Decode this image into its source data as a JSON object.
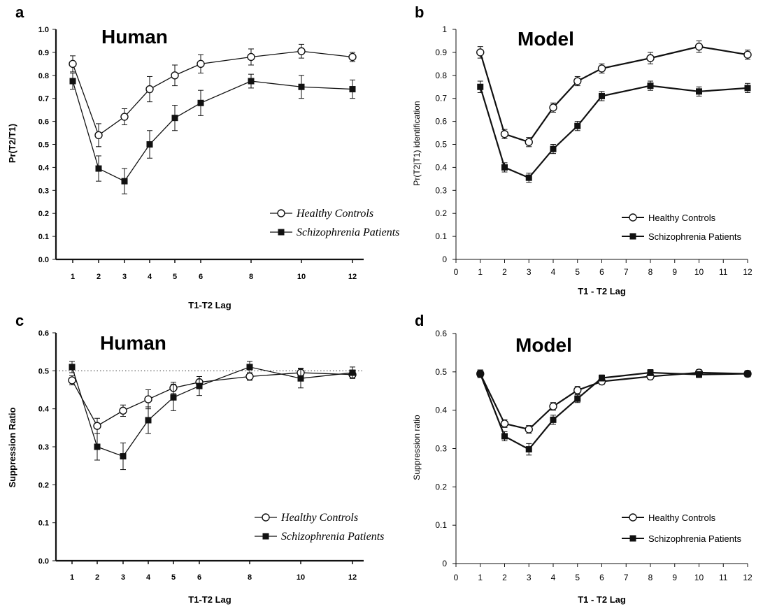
{
  "chart_data": [
    {
      "type": "line",
      "panel_label": "a",
      "title": "Human",
      "xlabel": "T1-T2 Lag",
      "ylabel": "Pr(T2/T1)",
      "x": [
        1,
        2,
        3,
        4,
        5,
        6,
        8,
        10,
        12
      ],
      "xtick_labels": [
        "1",
        "2",
        "3",
        "4",
        "5",
        "6",
        "8",
        "10",
        "12"
      ],
      "yticks": [
        "0.0",
        "0.1",
        "0.2",
        "0.3",
        "0.4",
        "0.5",
        "0.6",
        "0.7",
        "0.8",
        "0.9",
        "1.0"
      ],
      "ylim": [
        0,
        1.0
      ],
      "legend_location": "lower-right",
      "series": [
        {
          "name": "Healthy Controls",
          "marker": "open-circle",
          "values": [
            0.85,
            0.54,
            0.62,
            0.74,
            0.8,
            0.85,
            0.88,
            0.905,
            0.88
          ],
          "errors": [
            0.035,
            0.05,
            0.035,
            0.055,
            0.045,
            0.04,
            0.035,
            0.03,
            0.02
          ]
        },
        {
          "name": "Schizophrenia Patients",
          "marker": "filled-square",
          "values": [
            0.775,
            0.395,
            0.34,
            0.5,
            0.615,
            0.68,
            0.775,
            0.75,
            0.74
          ],
          "errors": [
            0.035,
            0.055,
            0.055,
            0.06,
            0.055,
            0.055,
            0.03,
            0.05,
            0.04
          ]
        }
      ]
    },
    {
      "type": "line",
      "panel_label": "b",
      "title": "Model",
      "xlabel": "T1 - T2 Lag",
      "ylabel": "Pr(T2|T1) identification",
      "x": [
        1,
        2,
        3,
        4,
        5,
        6,
        8,
        10,
        12
      ],
      "xtick_labels": [
        "0",
        "1",
        "2",
        "3",
        "4",
        "5",
        "6",
        "7",
        "8",
        "9",
        "10",
        "11",
        "12"
      ],
      "yticks": [
        "0",
        "0.1",
        "0.2",
        "0.3",
        "0.4",
        "0.5",
        "0.6",
        "0.7",
        "0.8",
        "0.9",
        "1"
      ],
      "xlim": [
        0,
        12
      ],
      "ylim": [
        0,
        1
      ],
      "legend_location": "lower-right",
      "series": [
        {
          "name": "Healthy Controls",
          "marker": "open-circle",
          "values": [
            0.9,
            0.545,
            0.51,
            0.66,
            0.775,
            0.83,
            0.875,
            0.925,
            0.89
          ],
          "errors": [
            0.025,
            0.02,
            0.02,
            0.02,
            0.02,
            0.02,
            0.025,
            0.025,
            0.02
          ]
        },
        {
          "name": "Schizophrenia Patients",
          "marker": "filled-square",
          "values": [
            0.75,
            0.4,
            0.355,
            0.48,
            0.58,
            0.71,
            0.755,
            0.73,
            0.745
          ],
          "errors": [
            0.025,
            0.02,
            0.02,
            0.02,
            0.02,
            0.02,
            0.02,
            0.02,
            0.02
          ]
        }
      ]
    },
    {
      "type": "line",
      "panel_label": "c",
      "title": "Human",
      "xlabel": "T1-T2 Lag",
      "ylabel": "Suppression Ratio",
      "x": [
        1,
        2,
        3,
        4,
        5,
        6,
        8,
        10,
        12
      ],
      "xtick_labels": [
        "1",
        "2",
        "3",
        "4",
        "5",
        "6",
        "8",
        "10",
        "12"
      ],
      "yticks": [
        "0.0",
        "0.1",
        "0.2",
        "0.3",
        "0.4",
        "0.5",
        "0.6"
      ],
      "ylim": [
        0,
        0.6
      ],
      "reference_line": 0.5,
      "legend_location": "lower-right",
      "series": [
        {
          "name": "Healthy Controls",
          "marker": "open-circle",
          "values": [
            0.475,
            0.355,
            0.395,
            0.425,
            0.455,
            0.47,
            0.485,
            0.495,
            0.49
          ],
          "errors": [
            0.012,
            0.02,
            0.015,
            0.025,
            0.015,
            0.015,
            0.01,
            0.012,
            0.01
          ]
        },
        {
          "name": "Schizophrenia Patients",
          "marker": "filled-square",
          "values": [
            0.51,
            0.3,
            0.275,
            0.37,
            0.43,
            0.46,
            0.51,
            0.48,
            0.495
          ],
          "errors": [
            0.015,
            0.035,
            0.035,
            0.035,
            0.035,
            0.025,
            0.015,
            0.025,
            0.015
          ]
        }
      ]
    },
    {
      "type": "line",
      "panel_label": "d",
      "title": "Model",
      "xlabel": "T1 - T2 Lag",
      "ylabel": "Suppression ratio",
      "x": [
        1,
        2,
        3,
        4,
        5,
        6,
        8,
        10,
        12
      ],
      "xtick_labels": [
        "0",
        "1",
        "2",
        "3",
        "4",
        "5",
        "6",
        "7",
        "8",
        "9",
        "10",
        "11",
        "12"
      ],
      "yticks": [
        "0",
        "0.1",
        "0.2",
        "0.3",
        "0.4",
        "0.5",
        "0.6"
      ],
      "xlim": [
        0,
        12
      ],
      "ylim": [
        0,
        0.6
      ],
      "legend_location": "lower-right",
      "series": [
        {
          "name": "Healthy Controls",
          "marker": "open-circle",
          "values": [
            0.495,
            0.365,
            0.35,
            0.41,
            0.452,
            0.475,
            0.488,
            0.498,
            0.495
          ],
          "errors": [
            0.01,
            0.01,
            0.01,
            0.01,
            0.01,
            0.008,
            0.008,
            0.008,
            0.008
          ]
        },
        {
          "name": "Schizophrenia Patients",
          "marker": "filled-square",
          "values": [
            0.495,
            0.332,
            0.298,
            0.375,
            0.43,
            0.484,
            0.498,
            0.493,
            0.495
          ],
          "errors": [
            0.01,
            0.012,
            0.015,
            0.012,
            0.01,
            0.008,
            0.008,
            0.008,
            0.008
          ]
        }
      ]
    }
  ]
}
